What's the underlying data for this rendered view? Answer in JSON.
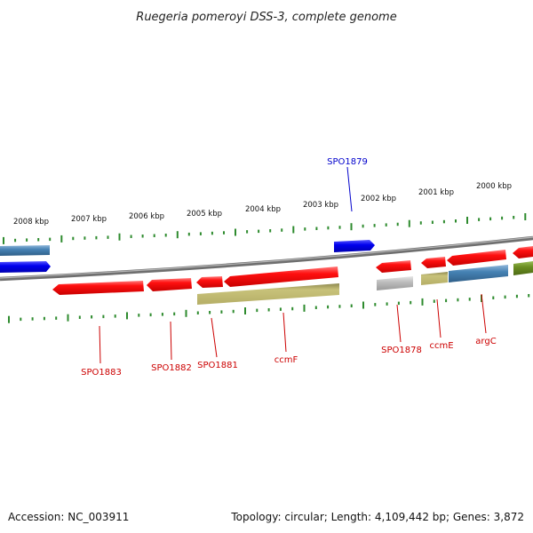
{
  "title": "Ruegeria pomeroyi DSS-3, complete genome",
  "footer": {
    "accession": "Accession: NC_003911",
    "summary": "Topology: circular; Length: 4,109,442 bp; Genes: 3,872"
  },
  "ruler_labels": [
    "2008 kbp",
    "2007 kbp",
    "2006 kbp",
    "2005 kbp",
    "2004 kbp",
    "2003 kbp",
    "2002 kbp",
    "2001 kbp",
    "2000 kbp"
  ],
  "gene_labels": {
    "spo1879": "SPO1879",
    "spo1883": "SPO1883",
    "spo1882": "SPO1882",
    "spo1881": "SPO1881",
    "ccmf": "ccmF",
    "spo1878": "SPO1878",
    "ccme": "ccmE",
    "argc": "argC"
  },
  "colors": {
    "backbone": "#7a7a7a",
    "tick": "#2e8b2e",
    "gene_red": "#e60000",
    "gene_blue": "#0000ee",
    "gene_steelblue": "#4682b4",
    "gene_khaki": "#bdb76b",
    "gene_olive": "#6b8e23",
    "gene_gray": "#a9a9a9",
    "label_red": "#cc0000",
    "label_blue": "#0000cc"
  }
}
